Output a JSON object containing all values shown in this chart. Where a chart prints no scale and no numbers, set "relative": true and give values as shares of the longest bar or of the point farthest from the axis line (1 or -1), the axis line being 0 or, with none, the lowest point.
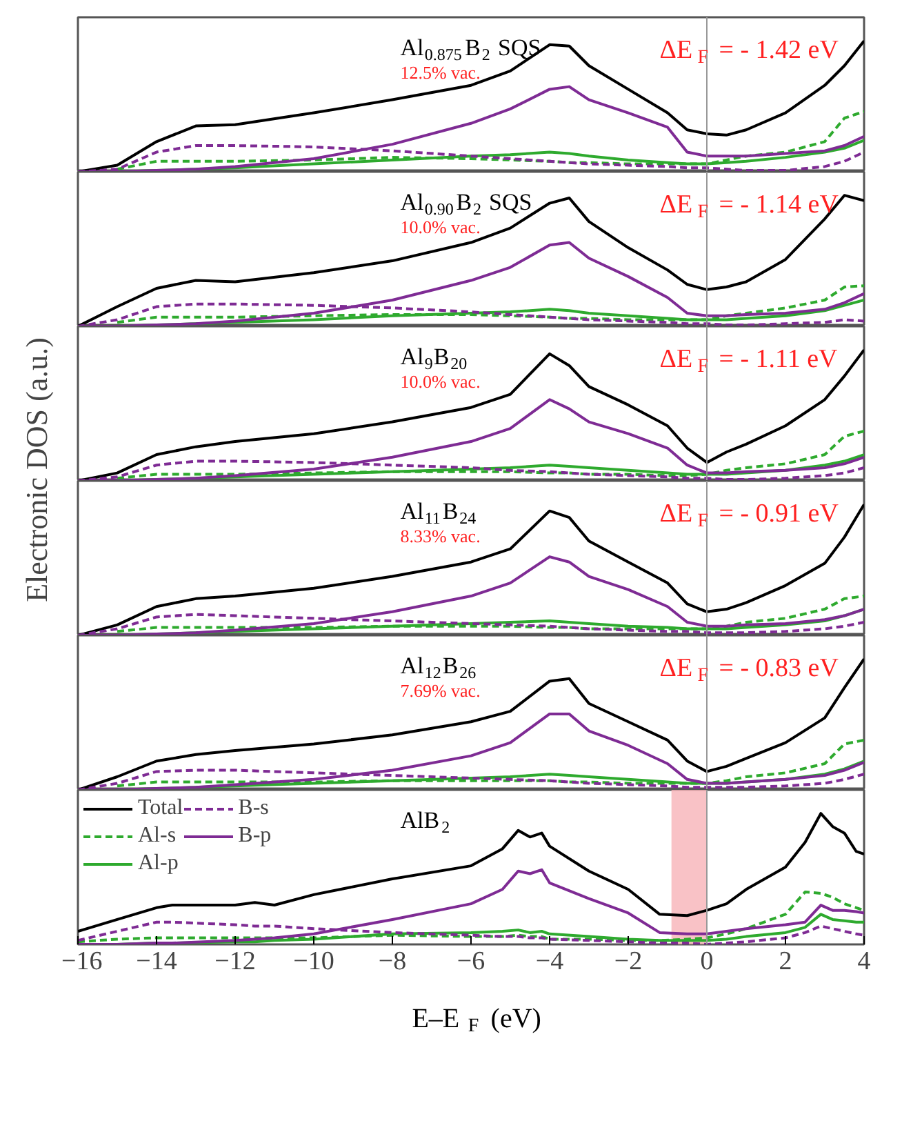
{
  "chart_data": [
    {
      "type": "line",
      "relative": true,
      "xlim": [
        -16,
        4
      ],
      "tick_labels": false,
      "grid": false,
      "annotations": [
        "Al$_{0.875}$B$_{2}$ SQS",
        "12.5% vac.",
        "ΔE$_{F}$ = - 1.42 eV"
      ],
      "ref_lines": [
        {
          "axis": "x",
          "value": 0,
          "color": "#999999"
        }
      ],
      "x": [
        -16,
        -15,
        -14,
        -13,
        -12,
        -10,
        -8,
        -6,
        -5,
        -4,
        -3.5,
        -3,
        -2,
        -1,
        -0.5,
        0,
        0.5,
        1,
        2,
        3,
        3.5,
        4
      ],
      "series": [
        {
          "color": "#000000",
          "line_style": "solid",
          "values": [
            0,
            0.05,
            0.23,
            0.35,
            0.36,
            0.45,
            0.55,
            0.66,
            0.77,
            0.97,
            0.96,
            0.81,
            0.63,
            0.45,
            0.32,
            0.29,
            0.28,
            0.32,
            0.45,
            0.66,
            0.81,
            1.0
          ]
        },
        {
          "color": "#2eaa2e",
          "line_style": "dashed",
          "values": [
            null,
            0.02,
            0.08,
            0.08,
            0.08,
            0.09,
            0.11,
            0.1,
            0.09,
            0.08,
            0.07,
            0.07,
            0.06,
            0.06,
            0.06,
            0.06,
            0.09,
            0.12,
            0.15,
            0.23,
            0.41,
            0.46
          ]
        },
        {
          "color": "#2eaa2e",
          "line_style": "solid",
          "values": [
            null,
            0,
            0.01,
            0.02,
            0.03,
            0.06,
            0.09,
            0.12,
            0.13,
            0.15,
            0.14,
            0.12,
            0.09,
            0.07,
            0.06,
            0.06,
            0.07,
            0.08,
            0.11,
            0.15,
            0.18,
            0.24
          ]
        },
        {
          "color": "#7e2b94",
          "line_style": "dashed",
          "values": [
            0,
            0.02,
            0.15,
            0.2,
            0.2,
            0.19,
            0.16,
            0.12,
            0.1,
            0.08,
            0.07,
            0.06,
            0.05,
            0.04,
            0.03,
            0.03,
            0.02,
            0.01,
            0.01,
            0.04,
            0.08,
            0.15
          ]
        },
        {
          "color": "#7e2b94",
          "line_style": "solid",
          "values": [
            0,
            0,
            0.01,
            0.02,
            0.04,
            0.1,
            0.21,
            0.37,
            0.48,
            0.63,
            0.65,
            0.55,
            0.45,
            0.34,
            0.15,
            0.12,
            0.12,
            0.12,
            0.14,
            0.16,
            0.2,
            0.27
          ]
        }
      ]
    },
    {
      "type": "line",
      "relative": true,
      "xlim": [
        -16,
        4
      ],
      "tick_labels": false,
      "grid": false,
      "annotations": [
        "Al$_{0.90}$B$_{2}$ SQS",
        "10.0% vac.",
        "ΔE$_{F}$ = - 1.14 eV"
      ],
      "ref_lines": [
        {
          "axis": "x",
          "value": 0,
          "color": "#999999"
        }
      ],
      "x": [
        -16,
        -15,
        -14,
        -13,
        -12,
        -10,
        -8,
        -6,
        -5,
        -4,
        -3.5,
        -3,
        -2,
        -1,
        -0.5,
        0,
        0.5,
        1,
        2,
        3,
        3.5,
        4
      ],
      "series": [
        {
          "color": "#000000",
          "line_style": "solid",
          "values": [
            0,
            0.15,
            0.29,
            0.35,
            0.34,
            0.41,
            0.5,
            0.64,
            0.75,
            0.94,
            0.98,
            0.8,
            0.6,
            0.43,
            0.32,
            0.28,
            0.3,
            0.34,
            0.51,
            0.82,
            1.0,
            0.96
          ]
        },
        {
          "color": "#2eaa2e",
          "line_style": "dashed",
          "values": [
            null,
            0.03,
            0.07,
            0.07,
            0.07,
            0.08,
            0.09,
            0.09,
            0.08,
            0.07,
            0.06,
            0.06,
            0.05,
            0.05,
            0.05,
            0.05,
            0.08,
            0.1,
            0.14,
            0.2,
            0.3,
            0.31
          ]
        },
        {
          "color": "#2eaa2e",
          "line_style": "solid",
          "values": [
            null,
            0,
            0.01,
            0.02,
            0.03,
            0.05,
            0.08,
            0.1,
            0.11,
            0.13,
            0.12,
            0.1,
            0.08,
            0.06,
            0.05,
            0.05,
            0.05,
            0.06,
            0.08,
            0.12,
            0.16,
            0.2
          ]
        },
        {
          "color": "#7e2b94",
          "line_style": "dashed",
          "values": [
            0,
            0.05,
            0.15,
            0.17,
            0.17,
            0.16,
            0.14,
            0.11,
            0.09,
            0.07,
            0.06,
            0.05,
            0.04,
            0.03,
            0.02,
            0.02,
            0.01,
            0.01,
            0.02,
            0.03,
            0.05,
            0.04
          ]
        },
        {
          "color": "#7e2b94",
          "line_style": "solid",
          "values": [
            0,
            0,
            0.01,
            0.02,
            0.04,
            0.1,
            0.2,
            0.35,
            0.45,
            0.62,
            0.64,
            0.52,
            0.38,
            0.22,
            0.1,
            0.08,
            0.08,
            0.09,
            0.1,
            0.13,
            0.18,
            0.25
          ]
        }
      ]
    },
    {
      "type": "line",
      "relative": true,
      "xlim": [
        -16,
        4
      ],
      "tick_labels": false,
      "grid": false,
      "ylabel": "Electronic DOS (a.u.)",
      "annotations": [
        "Al$_{9}$B$_{20}$",
        "10.0% vac.",
        "ΔE$_{F}$ = - 1.11 eV"
      ],
      "ref_lines": [
        {
          "axis": "x",
          "value": 0,
          "color": "#999999"
        }
      ],
      "x": [
        -16,
        -15,
        -14,
        -13,
        -12,
        -10,
        -8,
        -6,
        -5,
        -4,
        -3.5,
        -3,
        -2,
        -1,
        -0.5,
        0,
        0.5,
        1,
        2,
        3,
        3.5,
        4
      ],
      "series": [
        {
          "color": "#000000",
          "line_style": "solid",
          "values": [
            0,
            0.06,
            0.2,
            0.26,
            0.3,
            0.36,
            0.45,
            0.56,
            0.66,
            0.97,
            0.88,
            0.72,
            0.58,
            0.42,
            0.25,
            0.14,
            0.22,
            0.28,
            0.42,
            0.62,
            0.8,
            1.0
          ]
        },
        {
          "color": "#2eaa2e",
          "line_style": "dashed",
          "values": [
            null,
            0.02,
            0.05,
            0.05,
            0.05,
            0.06,
            0.07,
            0.07,
            0.07,
            0.06,
            0.06,
            0.05,
            0.05,
            0.04,
            0.04,
            0.05,
            0.08,
            0.1,
            0.13,
            0.2,
            0.34,
            0.38
          ]
        },
        {
          "color": "#2eaa2e",
          "line_style": "solid",
          "values": [
            null,
            0,
            0.01,
            0.02,
            0.03,
            0.05,
            0.07,
            0.09,
            0.1,
            0.12,
            0.11,
            0.1,
            0.08,
            0.06,
            0.05,
            0.05,
            0.05,
            0.06,
            0.08,
            0.12,
            0.15,
            0.2
          ]
        },
        {
          "color": "#7e2b94",
          "line_style": "dashed",
          "values": [
            0,
            0.03,
            0.12,
            0.15,
            0.15,
            0.14,
            0.12,
            0.1,
            0.08,
            0.07,
            0.06,
            0.05,
            0.04,
            0.03,
            0.02,
            0.02,
            0.01,
            0.01,
            0.02,
            0.04,
            0.06,
            0.1
          ]
        },
        {
          "color": "#7e2b94",
          "line_style": "solid",
          "values": [
            0,
            0,
            0.01,
            0.02,
            0.04,
            0.09,
            0.18,
            0.3,
            0.4,
            0.62,
            0.55,
            0.45,
            0.36,
            0.25,
            0.12,
            0.06,
            0.06,
            0.07,
            0.08,
            0.1,
            0.13,
            0.18
          ]
        }
      ]
    },
    {
      "type": "line",
      "relative": true,
      "xlim": [
        -16,
        4
      ],
      "tick_labels": false,
      "grid": false,
      "annotations": [
        "Al$_{11}$B$_{24}$",
        "8.33% vac.",
        "ΔE$_{F}$ = - 0.91 eV"
      ],
      "ref_lines": [
        {
          "axis": "x",
          "value": 0,
          "color": "#999999"
        }
      ],
      "x": [
        -16,
        -15,
        -14,
        -13,
        -12,
        -10,
        -8,
        -6,
        -5,
        -4,
        -3.5,
        -3,
        -2,
        -1,
        -0.5,
        0,
        0.5,
        1,
        2,
        3,
        3.5,
        4
      ],
      "series": [
        {
          "color": "#000000",
          "line_style": "solid",
          "values": [
            0,
            0.08,
            0.22,
            0.28,
            0.3,
            0.36,
            0.45,
            0.56,
            0.66,
            0.95,
            0.9,
            0.72,
            0.56,
            0.4,
            0.24,
            0.18,
            0.2,
            0.25,
            0.38,
            0.55,
            0.75,
            1.0
          ]
        },
        {
          "color": "#2eaa2e",
          "line_style": "dashed",
          "values": [
            null,
            0.03,
            0.06,
            0.06,
            0.06,
            0.06,
            0.07,
            0.07,
            0.07,
            0.06,
            0.06,
            0.05,
            0.05,
            0.05,
            0.05,
            0.05,
            0.07,
            0.1,
            0.13,
            0.2,
            0.28,
            0.3
          ]
        },
        {
          "color": "#2eaa2e",
          "line_style": "solid",
          "values": [
            null,
            0,
            0.01,
            0.02,
            0.03,
            0.05,
            0.07,
            0.09,
            0.1,
            0.11,
            0.1,
            0.09,
            0.07,
            0.06,
            0.05,
            0.05,
            0.05,
            0.06,
            0.08,
            0.11,
            0.15,
            0.2
          ]
        },
        {
          "color": "#7e2b94",
          "line_style": "dashed",
          "values": [
            0,
            0.05,
            0.14,
            0.16,
            0.15,
            0.13,
            0.11,
            0.09,
            0.08,
            0.07,
            0.06,
            0.05,
            0.04,
            0.03,
            0.03,
            0.02,
            0.02,
            0.02,
            0.03,
            0.05,
            0.07,
            0.1
          ]
        },
        {
          "color": "#7e2b94",
          "line_style": "solid",
          "values": [
            0,
            0,
            0.01,
            0.02,
            0.04,
            0.09,
            0.18,
            0.3,
            0.4,
            0.6,
            0.56,
            0.45,
            0.35,
            0.22,
            0.1,
            0.07,
            0.07,
            0.08,
            0.09,
            0.12,
            0.15,
            0.2
          ]
        }
      ]
    },
    {
      "type": "line",
      "relative": true,
      "xlim": [
        -16,
        4
      ],
      "tick_labels": false,
      "grid": false,
      "annotations": [
        "Al$_{12}$B$_{26}$",
        "7.69% vac.",
        "ΔE$_{F}$ = - 0.83 eV"
      ],
      "ref_lines": [
        {
          "axis": "x",
          "value": 0,
          "color": "#999999"
        }
      ],
      "x": [
        -16,
        -15,
        -14,
        -13,
        -12,
        -10,
        -8,
        -6,
        -5,
        -4,
        -3.5,
        -3,
        -2,
        -1,
        -0.5,
        0,
        0.5,
        1,
        2,
        3,
        3.5,
        4
      ],
      "series": [
        {
          "color": "#000000",
          "line_style": "solid",
          "values": [
            0,
            0.1,
            0.22,
            0.27,
            0.3,
            0.35,
            0.42,
            0.52,
            0.6,
            0.83,
            0.85,
            0.66,
            0.52,
            0.38,
            0.22,
            0.14,
            0.18,
            0.24,
            0.36,
            0.55,
            0.78,
            1.0
          ]
        },
        {
          "color": "#2eaa2e",
          "line_style": "dashed",
          "values": [
            null,
            0.03,
            0.06,
            0.06,
            0.06,
            0.06,
            0.07,
            0.07,
            0.07,
            0.07,
            0.06,
            0.06,
            0.05,
            0.05,
            0.05,
            0.05,
            0.07,
            0.1,
            0.13,
            0.2,
            0.35,
            0.38
          ]
        },
        {
          "color": "#2eaa2e",
          "line_style": "solid",
          "values": [
            null,
            0,
            0.01,
            0.02,
            0.03,
            0.05,
            0.07,
            0.09,
            0.1,
            0.12,
            0.11,
            0.1,
            0.08,
            0.06,
            0.05,
            0.05,
            0.05,
            0.06,
            0.08,
            0.12,
            0.16,
            0.22
          ]
        },
        {
          "color": "#7e2b94",
          "line_style": "dashed",
          "values": [
            0,
            0.05,
            0.14,
            0.15,
            0.15,
            0.13,
            0.11,
            0.09,
            0.08,
            0.07,
            0.06,
            0.05,
            0.04,
            0.03,
            0.02,
            0.02,
            0.02,
            0.02,
            0.03,
            0.05,
            0.08,
            0.12
          ]
        },
        {
          "color": "#7e2b94",
          "line_style": "solid",
          "values": [
            0,
            0,
            0.01,
            0.02,
            0.04,
            0.08,
            0.15,
            0.26,
            0.36,
            0.58,
            0.58,
            0.45,
            0.34,
            0.2,
            0.08,
            0.05,
            0.05,
            0.06,
            0.08,
            0.11,
            0.15,
            0.21
          ]
        }
      ]
    },
    {
      "type": "line",
      "relative": true,
      "xlim": [
        -16,
        4
      ],
      "tick_labels": "x",
      "grid": false,
      "legend": "top left",
      "xlabel": "E–E$_{F}$ (eV)",
      "annotations": [
        "AlB$_{2}$"
      ],
      "ref_lines": [
        {
          "axis": "x",
          "value": 0,
          "color": "#999999"
        }
      ],
      "bands": [
        {
          "axis": "x",
          "from": -0.9,
          "to": 0,
          "color": "#f7b3b8"
        }
      ],
      "xticks": [
        {
          "value": -16,
          "label": "−16"
        },
        {
          "value": -14,
          "label": "−14"
        },
        {
          "value": -12,
          "label": "−12"
        },
        {
          "value": -10,
          "label": "−10"
        },
        {
          "value": -8,
          "label": "−8"
        },
        {
          "value": -6,
          "label": "−6"
        },
        {
          "value": -4,
          "label": "−4"
        },
        {
          "value": -2,
          "label": "−2"
        },
        0,
        2,
        4
      ],
      "x": [
        -16,
        -15,
        -14,
        -13.6,
        -12,
        -11.5,
        -11,
        -10,
        -8,
        -6,
        -5.2,
        -4.8,
        -4.5,
        -4.2,
        -4,
        -3,
        -2,
        -1.2,
        -0.5,
        0,
        0.5,
        1,
        2,
        2.5,
        2.9,
        3.2,
        3.5,
        3.8,
        4
      ],
      "series": [
        {
          "name": "Total",
          "color": "#000000",
          "line_style": "solid",
          "values": [
            0.1,
            0.19,
            0.28,
            0.3,
            0.3,
            0.32,
            0.3,
            0.38,
            0.5,
            0.6,
            0.73,
            0.87,
            0.82,
            0.85,
            0.75,
            0.56,
            0.42,
            0.23,
            0.22,
            0.26,
            0.31,
            0.42,
            0.59,
            0.78,
            1.0,
            0.9,
            0.85,
            0.71,
            0.69
          ]
        },
        {
          "name": "Al-s",
          "color": "#2eaa2e",
          "line_style": "dashed",
          "values": [
            0.02,
            0.04,
            0.05,
            0.05,
            0.05,
            0.05,
            0.05,
            0.05,
            0.07,
            0.06,
            0.06,
            0.07,
            0.06,
            0.06,
            0.04,
            0.04,
            0.03,
            0.03,
            0.04,
            0.05,
            0.08,
            0.12,
            0.23,
            0.4,
            0.39,
            0.36,
            0.31,
            0.28,
            0.26
          ]
        },
        {
          "name": "Al-p",
          "color": "#2eaa2e",
          "line_style": "solid",
          "values": [
            0,
            0,
            0.01,
            0.01,
            0.02,
            0.02,
            0.03,
            0.04,
            0.08,
            0.09,
            0.1,
            0.11,
            0.09,
            0.1,
            0.08,
            0.06,
            0.04,
            0.03,
            0.03,
            0.03,
            0.04,
            0.06,
            0.09,
            0.13,
            0.23,
            0.19,
            0.18,
            0.17,
            0.17
          ]
        },
        {
          "name": "B-s",
          "color": "#7e2b94",
          "line_style": "dashed",
          "values": [
            0.03,
            0.1,
            0.17,
            0.17,
            0.15,
            0.14,
            0.14,
            0.12,
            0.09,
            0.07,
            0.06,
            0.06,
            0.05,
            0.05,
            0.04,
            0.03,
            0.02,
            0.01,
            0.01,
            0,
            0.01,
            0.02,
            0.05,
            0.09,
            0.14,
            0.12,
            0.1,
            0.08,
            0.07
          ]
        },
        {
          "name": "B-p",
          "color": "#7e2b94",
          "line_style": "solid",
          "values": [
            0,
            0,
            0.01,
            0.01,
            0.03,
            0.04,
            0.05,
            0.08,
            0.19,
            0.31,
            0.42,
            0.56,
            0.54,
            0.57,
            0.47,
            0.35,
            0.24,
            0.09,
            0.08,
            0.08,
            0.1,
            0.12,
            0.15,
            0.17,
            0.3,
            0.26,
            0.26,
            0.25,
            0.24
          ]
        }
      ]
    }
  ]
}
